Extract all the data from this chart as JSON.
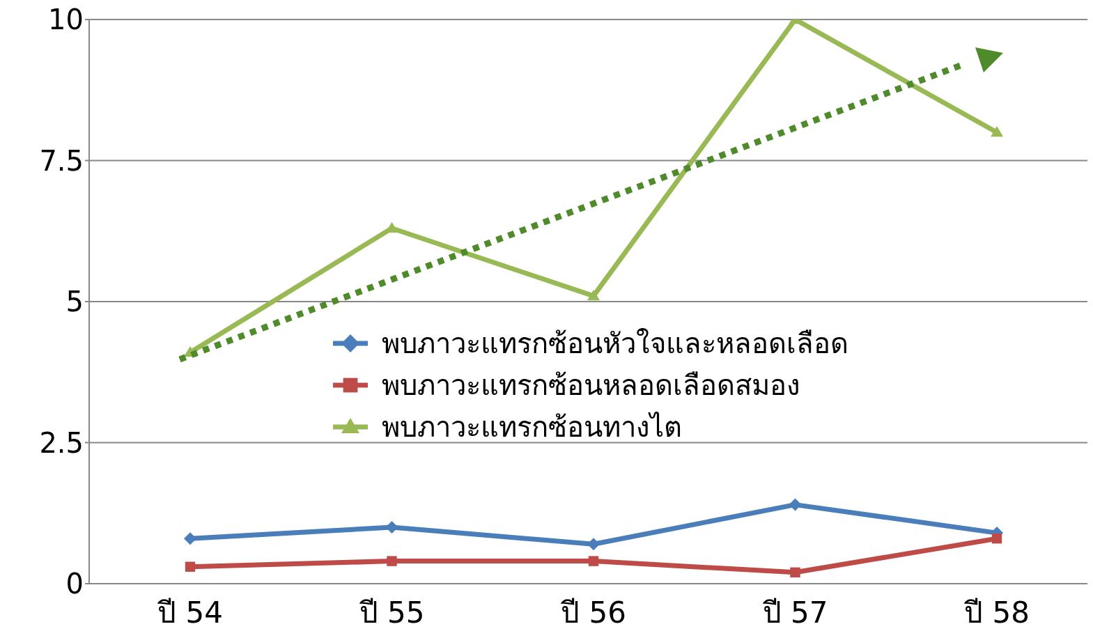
{
  "chart_data": {
    "type": "line",
    "categories": [
      "ปี 54",
      "ปี 55",
      "ปี 56",
      "ปี 57",
      "ปี 58"
    ],
    "series": [
      {
        "name": "พบภาวะแทรกซ้อนหัวใจและหลอดเลือด",
        "color": "#4a7ebb",
        "values": [
          0.8,
          1.0,
          0.7,
          1.4,
          0.9
        ],
        "marker": "diamond"
      },
      {
        "name": "พบภาวะแทรกซ้อนหลอดเลือดสมอง",
        "color": "#be4b48",
        "values": [
          0.3,
          0.4,
          0.4,
          0.2,
          0.8
        ],
        "marker": "square"
      },
      {
        "name": "พบภาวะแทรกซ้อนทางไต",
        "color": "#98b954",
        "values": [
          4.1,
          6.3,
          5.1,
          10,
          8.0
        ],
        "marker": "triangle"
      }
    ],
    "ylim": [
      0,
      10
    ],
    "yticks": [
      0,
      {
        "value": 2.5,
        "label": "2.5"
      },
      5,
      {
        "value": 7.5,
        "label": "7.5"
      },
      10
    ],
    "grid": "y",
    "legend": "center",
    "line_style": "solid"
  }
}
